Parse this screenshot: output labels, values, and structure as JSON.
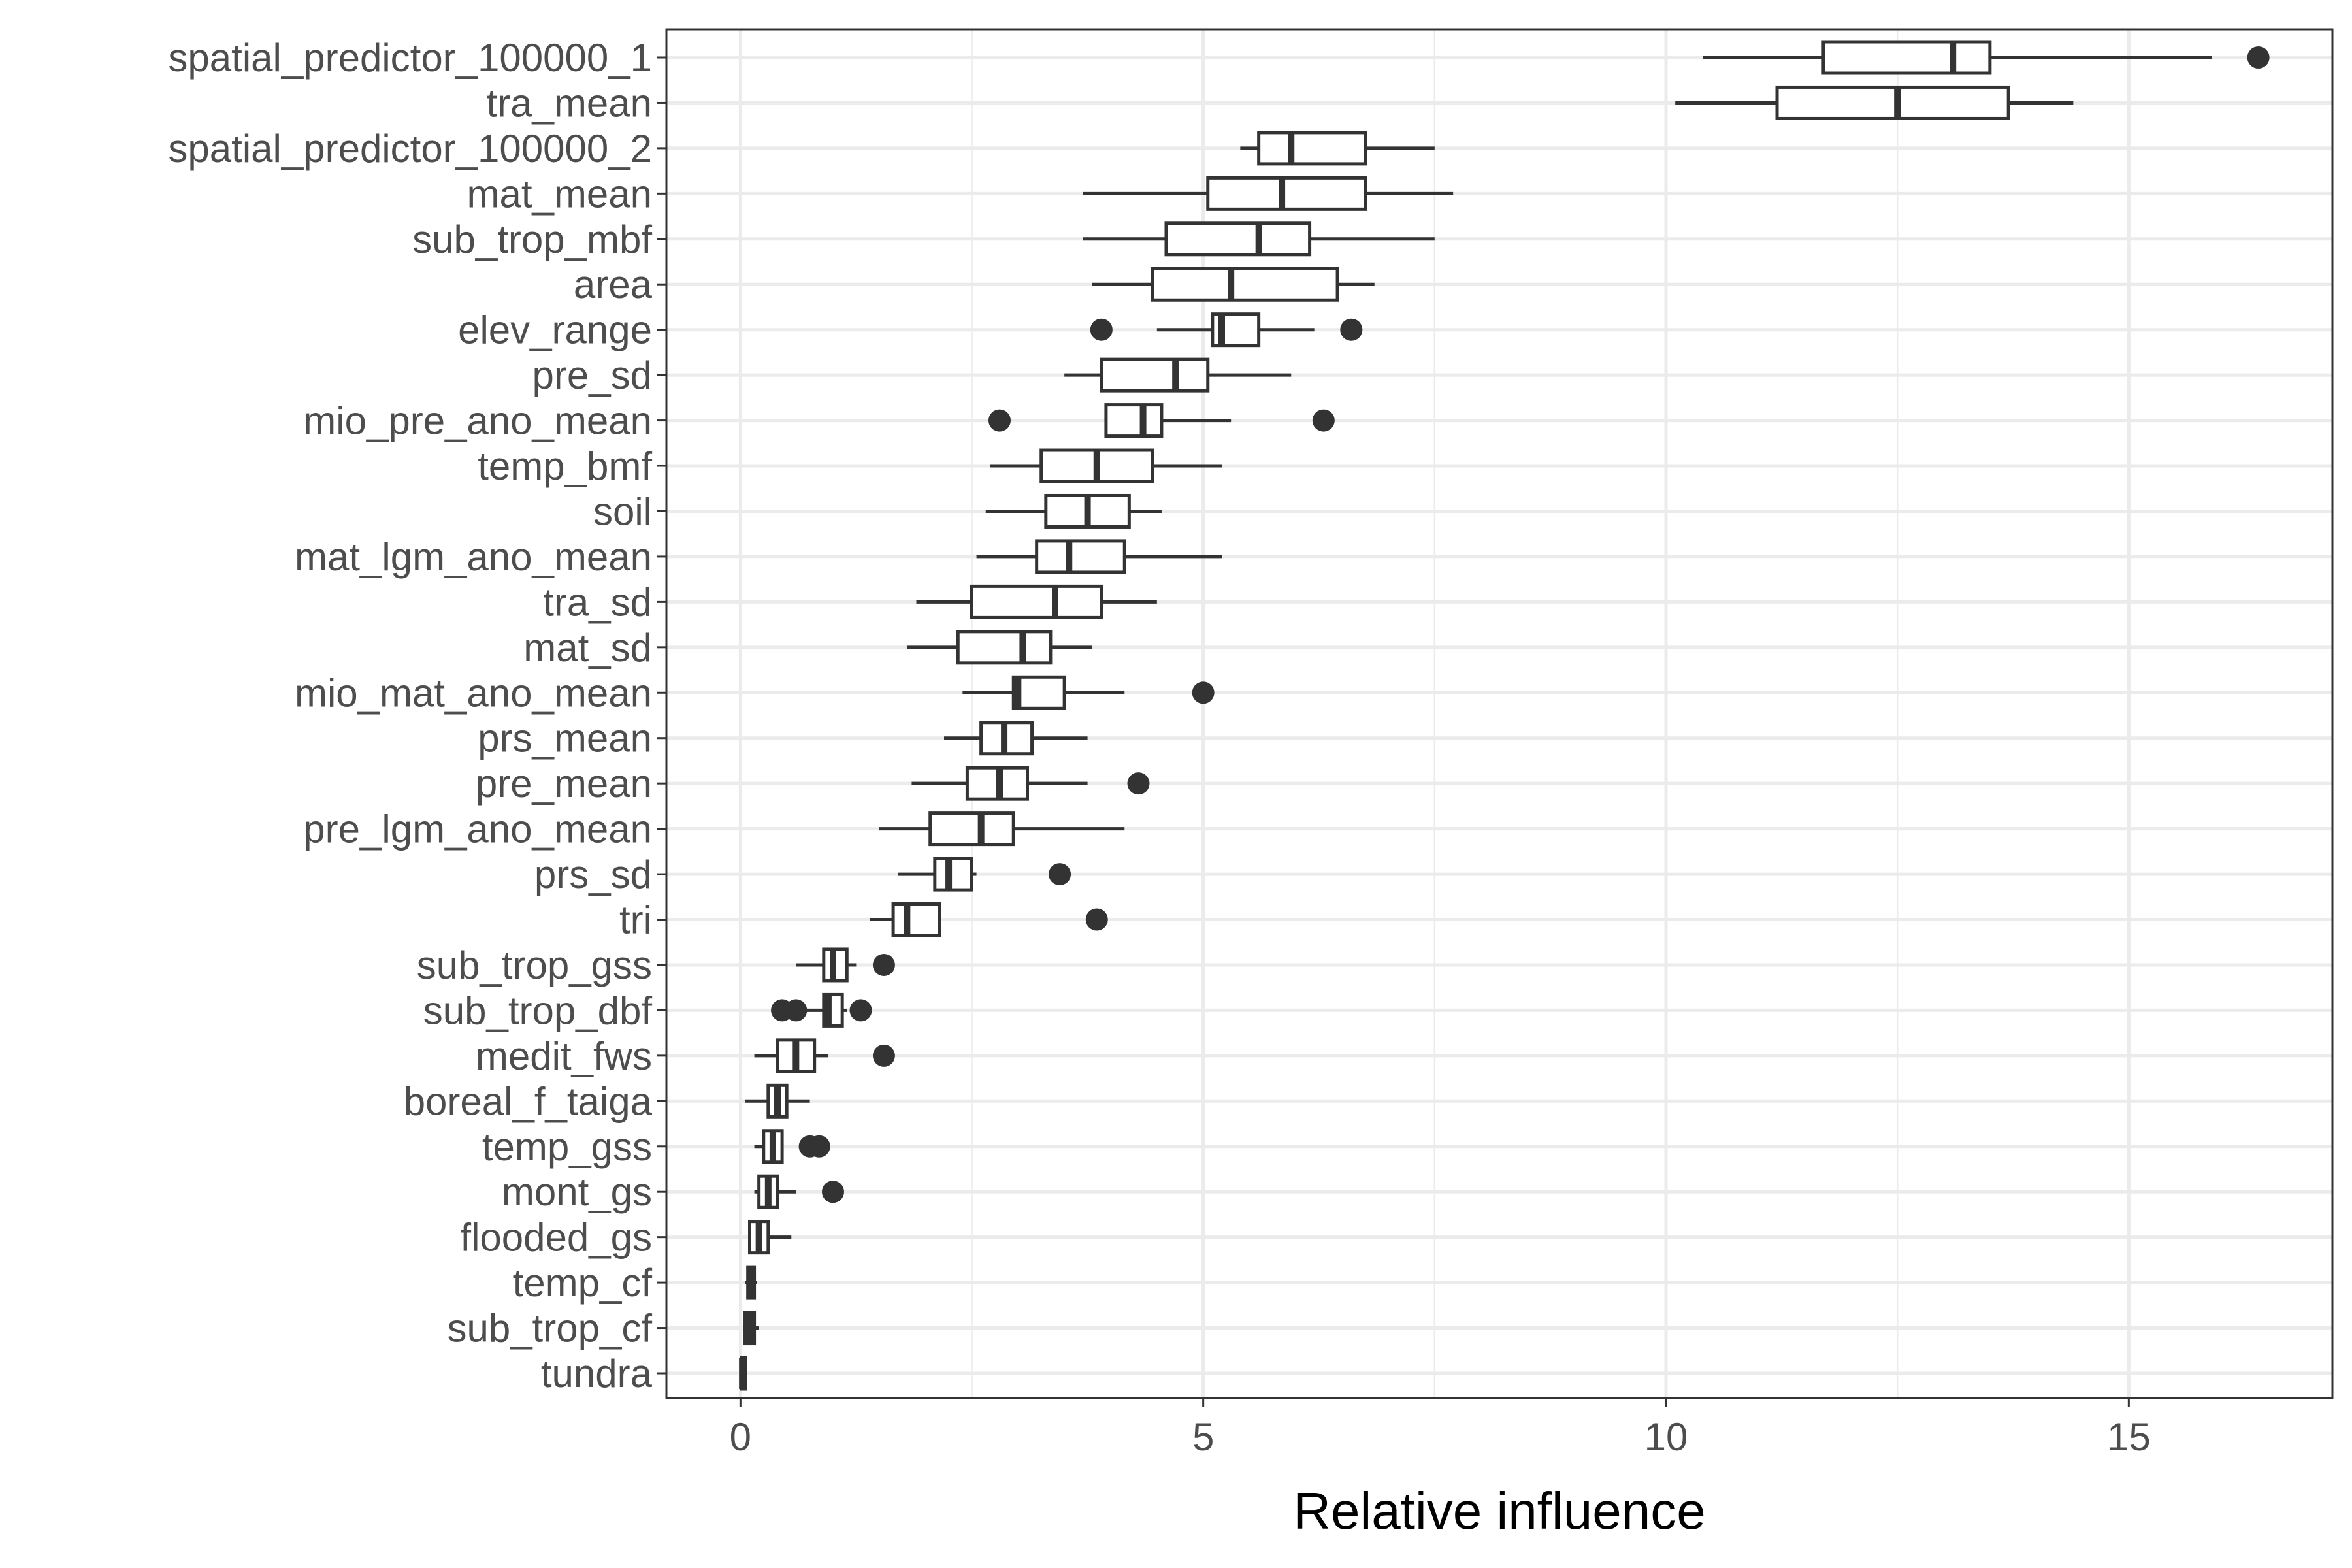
{
  "chart_data": {
    "type": "boxplot",
    "orientation": "horizontal",
    "xlabel": "Relative influence",
    "ylabel": "",
    "xlim": [
      -0.8,
      17.2
    ],
    "xticks": [
      0,
      5,
      10,
      15
    ],
    "grid": true,
    "colors": {
      "box": "#333333",
      "grid": "#ebebeb",
      "panel_border": "#333333"
    },
    "categories": [
      "spatial_predictor_100000_1",
      "tra_mean",
      "spatial_predictor_100000_2",
      "mat_mean",
      "sub_trop_mbf",
      "area",
      "elev_range",
      "pre_sd",
      "mio_pre_ano_mean",
      "temp_bmf",
      "soil",
      "mat_lgm_ano_mean",
      "tra_sd",
      "mat_sd",
      "mio_mat_ano_mean",
      "prs_mean",
      "pre_mean",
      "pre_lgm_ano_mean",
      "prs_sd",
      "tri",
      "sub_trop_gss",
      "sub_trop_dbf",
      "medit_fws",
      "boreal_f_taiga",
      "temp_gss",
      "mont_gs",
      "flooded_gs",
      "temp_cf",
      "sub_trop_cf",
      "tundra"
    ],
    "boxes": [
      {
        "min": 10.4,
        "q1": 11.7,
        "median": 13.1,
        "q3": 13.5,
        "max": 15.9,
        "outliers": [
          16.4
        ]
      },
      {
        "min": 10.1,
        "q1": 11.2,
        "median": 12.5,
        "q3": 13.7,
        "max": 14.4,
        "outliers": []
      },
      {
        "min": 5.4,
        "q1": 5.6,
        "median": 5.95,
        "q3": 6.75,
        "max": 7.5,
        "outliers": []
      },
      {
        "min": 3.7,
        "q1": 5.05,
        "median": 5.85,
        "q3": 6.75,
        "max": 7.7,
        "outliers": []
      },
      {
        "min": 3.7,
        "q1": 4.6,
        "median": 5.6,
        "q3": 6.15,
        "max": 7.5,
        "outliers": []
      },
      {
        "min": 3.8,
        "q1": 4.45,
        "median": 5.3,
        "q3": 6.45,
        "max": 6.85,
        "outliers": []
      },
      {
        "min": 4.5,
        "q1": 5.1,
        "median": 5.2,
        "q3": 5.6,
        "max": 6.2,
        "outliers": [
          3.9,
          6.6
        ]
      },
      {
        "min": 3.5,
        "q1": 3.9,
        "median": 4.7,
        "q3": 5.05,
        "max": 5.95,
        "outliers": []
      },
      {
        "min": 3.95,
        "q1": 3.95,
        "median": 4.35,
        "q3": 4.55,
        "max": 5.3,
        "outliers": [
          2.8,
          6.3
        ]
      },
      {
        "min": 2.7,
        "q1": 3.25,
        "median": 3.85,
        "q3": 4.45,
        "max": 5.2,
        "outliers": []
      },
      {
        "min": 2.65,
        "q1": 3.3,
        "median": 3.75,
        "q3": 4.2,
        "max": 4.55,
        "outliers": []
      },
      {
        "min": 2.55,
        "q1": 3.2,
        "median": 3.55,
        "q3": 4.15,
        "max": 5.2,
        "outliers": []
      },
      {
        "min": 1.9,
        "q1": 2.5,
        "median": 3.4,
        "q3": 3.9,
        "max": 4.5,
        "outliers": []
      },
      {
        "min": 1.8,
        "q1": 2.35,
        "median": 3.05,
        "q3": 3.35,
        "max": 3.8,
        "outliers": []
      },
      {
        "min": 2.4,
        "q1": 2.95,
        "median": 3.0,
        "q3": 3.5,
        "max": 4.15,
        "outliers": [
          5.0
        ]
      },
      {
        "min": 2.2,
        "q1": 2.6,
        "median": 2.85,
        "q3": 3.15,
        "max": 3.75,
        "outliers": []
      },
      {
        "min": 1.85,
        "q1": 2.45,
        "median": 2.8,
        "q3": 3.1,
        "max": 3.75,
        "outliers": [
          4.3
        ]
      },
      {
        "min": 1.5,
        "q1": 2.05,
        "median": 2.6,
        "q3": 2.95,
        "max": 4.15,
        "outliers": []
      },
      {
        "min": 1.7,
        "q1": 2.1,
        "median": 2.25,
        "q3": 2.5,
        "max": 2.55,
        "outliers": [
          3.45
        ]
      },
      {
        "min": 1.4,
        "q1": 1.65,
        "median": 1.8,
        "q3": 2.15,
        "max": 2.15,
        "outliers": [
          3.85
        ]
      },
      {
        "min": 0.6,
        "q1": 0.9,
        "median": 1.0,
        "q3": 1.15,
        "max": 1.25,
        "outliers": [
          1.55
        ]
      },
      {
        "min": 0.5,
        "q1": 0.9,
        "median": 0.95,
        "q3": 1.1,
        "max": 1.15,
        "outliers": [
          0.45,
          0.6,
          1.3
        ]
      },
      {
        "min": 0.15,
        "q1": 0.4,
        "median": 0.6,
        "q3": 0.8,
        "max": 0.95,
        "outliers": [
          1.55
        ]
      },
      {
        "min": 0.05,
        "q1": 0.3,
        "median": 0.4,
        "q3": 0.5,
        "max": 0.75,
        "outliers": []
      },
      {
        "min": 0.15,
        "q1": 0.25,
        "median": 0.35,
        "q3": 0.45,
        "max": 0.45,
        "outliers": [
          0.75,
          0.85
        ]
      },
      {
        "min": 0.15,
        "q1": 0.2,
        "median": 0.3,
        "q3": 0.4,
        "max": 0.6,
        "outliers": [
          1.0
        ]
      },
      {
        "min": 0.1,
        "q1": 0.1,
        "median": 0.2,
        "q3": 0.3,
        "max": 0.55,
        "outliers": []
      },
      {
        "min": 0.05,
        "q1": 0.08,
        "median": 0.12,
        "q3": 0.15,
        "max": 0.18,
        "outliers": []
      },
      {
        "min": 0.03,
        "q1": 0.05,
        "median": 0.1,
        "q3": 0.15,
        "max": 0.2,
        "outliers": []
      },
      {
        "min": 0.0,
        "q1": 0.01,
        "median": 0.02,
        "q3": 0.03,
        "max": 0.05,
        "outliers": []
      }
    ]
  }
}
